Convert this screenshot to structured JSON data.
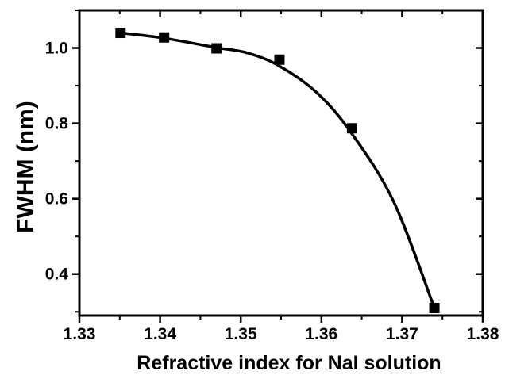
{
  "chart_data": {
    "type": "scatter",
    "xlabel": "Refractive index for NaI solution",
    "ylabel": "FWHM (nm)",
    "xlim": [
      1.33,
      1.38
    ],
    "ylim": [
      0.29,
      1.1
    ],
    "x_ticks": [
      "1.33",
      "1.34",
      "1.35",
      "1.36",
      "1.37",
      "1.38"
    ],
    "y_ticks": [
      "0.4",
      "0.6",
      "0.8",
      "1.0"
    ],
    "grid": false,
    "series": [
      {
        "marker": "square",
        "color": "#000000",
        "x": [
          1.3351,
          1.3405,
          1.347,
          1.3548,
          1.3638,
          1.374
        ],
        "y": [
          1.04,
          1.028,
          0.999,
          0.969,
          0.787,
          0.31
        ]
      }
    ],
    "fit_curve": {
      "color": "#000000",
      "x": [
        1.3351,
        1.3405,
        1.347,
        1.3508,
        1.3548,
        1.3595,
        1.3638,
        1.369,
        1.374
      ],
      "y": [
        1.04,
        1.026,
        1.001,
        0.987,
        0.952,
        0.88,
        0.772,
        0.59,
        0.31
      ]
    }
  }
}
